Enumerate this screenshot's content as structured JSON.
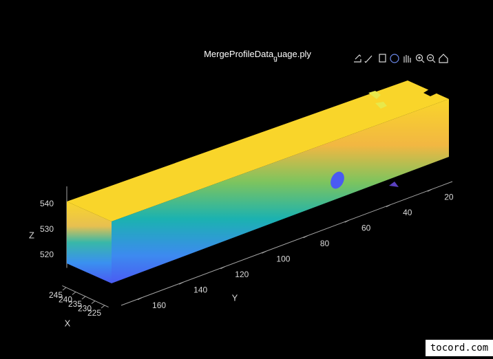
{
  "chart_data": {
    "type": "scatter3",
    "title": {
      "main": "MergeProfileData",
      "subscript": "g",
      "rest": "uage.ply"
    },
    "xlabel": "X",
    "ylabel": "Y",
    "zlabel": "Z",
    "xlim": [
      223,
      247
    ],
    "xticks": [
      225,
      230,
      235,
      240,
      245
    ],
    "ylim": [
      10,
      170
    ],
    "yticks": [
      20,
      40,
      60,
      80,
      100,
      120,
      140,
      160
    ],
    "zlim": [
      515,
      547
    ],
    "zticks": [
      520,
      530,
      540
    ]
  },
  "watermark": "tocord.com"
}
